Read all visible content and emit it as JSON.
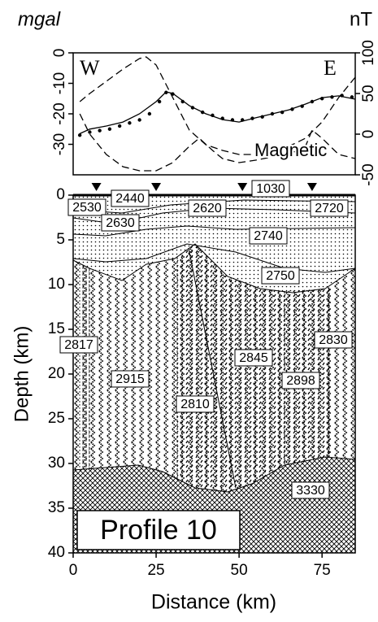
{
  "chart_data": [
    {
      "type": "line",
      "ylabel": "mgal",
      "y2label": "nT",
      "annotations": [
        "W",
        "E",
        "Magnetic"
      ],
      "xlim": [
        0,
        85
      ],
      "ylim": [
        -40,
        0
      ],
      "yticks": [
        0,
        -10,
        -20,
        -30
      ],
      "y2lim": [
        -50,
        100
      ],
      "y2ticks": [
        -50,
        0,
        50,
        100
      ],
      "series": [
        {
          "style": "dots",
          "color": "#000000",
          "x": [
            2,
            5,
            8,
            11,
            14,
            17,
            20,
            23,
            26,
            28,
            30,
            33,
            36,
            39,
            42,
            45,
            48,
            51,
            54,
            57,
            60,
            63,
            66,
            69,
            72,
            75,
            78,
            81,
            84
          ],
          "values": [
            -27,
            -26,
            -25.5,
            -25,
            -24,
            -23,
            -22,
            -20,
            -16,
            -13,
            -13.5,
            -16,
            -18,
            -19.5,
            -20.5,
            -21.5,
            -22,
            -22,
            -21.5,
            -21,
            -20,
            -19.5,
            -18.5,
            -17.5,
            -16,
            -15,
            -14.5,
            -14,
            -14.5
          ]
        },
        {
          "style": "solid",
          "color": "#000000",
          "x": [
            2,
            5,
            10,
            15,
            20,
            25,
            28,
            30,
            35,
            40,
            45,
            50,
            55,
            60,
            65,
            70,
            75,
            80,
            85
          ],
          "values": [
            -26.5,
            -25,
            -24,
            -22.7,
            -20,
            -16,
            -12.8,
            -13.3,
            -17.3,
            -20,
            -21.9,
            -22.7,
            -21.3,
            -20,
            -18.7,
            -16.8,
            -14.7,
            -14.1,
            -15.2
          ]
        },
        {
          "style": "dashed",
          "color": "#000000",
          "axis": "y2",
          "x": [
            2,
            5,
            10,
            15,
            20,
            22,
            25,
            30,
            35,
            40,
            45,
            50,
            55,
            60,
            65,
            70,
            75,
            80,
            85
          ],
          "values": [
            40,
            50,
            65,
            80,
            93,
            95,
            85,
            45,
            5,
            -13,
            -20,
            -25,
            -25,
            -20,
            -15,
            -5,
            15,
            45,
            70
          ]
        },
        {
          "name": "Magnetic",
          "style": "dashed",
          "color": "#000000",
          "axis": "y2",
          "x": [
            2,
            5,
            10,
            15,
            20,
            25,
            30,
            35,
            38,
            42,
            45,
            50,
            55,
            60,
            65,
            70,
            72,
            75,
            80,
            85
          ],
          "values": [
            25,
            0,
            -25,
            -40,
            -45,
            -45,
            -35,
            -15,
            -5,
            -20,
            -30,
            -35,
            -32,
            -28,
            -25,
            -15,
            5,
            -5,
            -25,
            -30
          ]
        }
      ]
    },
    {
      "type": "section",
      "title": "Profile 10",
      "xlabel": "Distance (km)",
      "ylabel": "Depth (km)",
      "xlim": [
        0,
        85
      ],
      "xticks": [
        0,
        25,
        50,
        75
      ],
      "ylim": [
        40,
        0
      ],
      "yticks": [
        0,
        5,
        10,
        15,
        20,
        25,
        30,
        35,
        40
      ],
      "stations": [
        7,
        25,
        51,
        72
      ],
      "bodies": [
        2530,
        2440,
        2620,
        1030,
        2720,
        2630,
        2740,
        2750,
        2817,
        2915,
        2845,
        2810,
        2898,
        2830,
        3330
      ]
    }
  ]
}
